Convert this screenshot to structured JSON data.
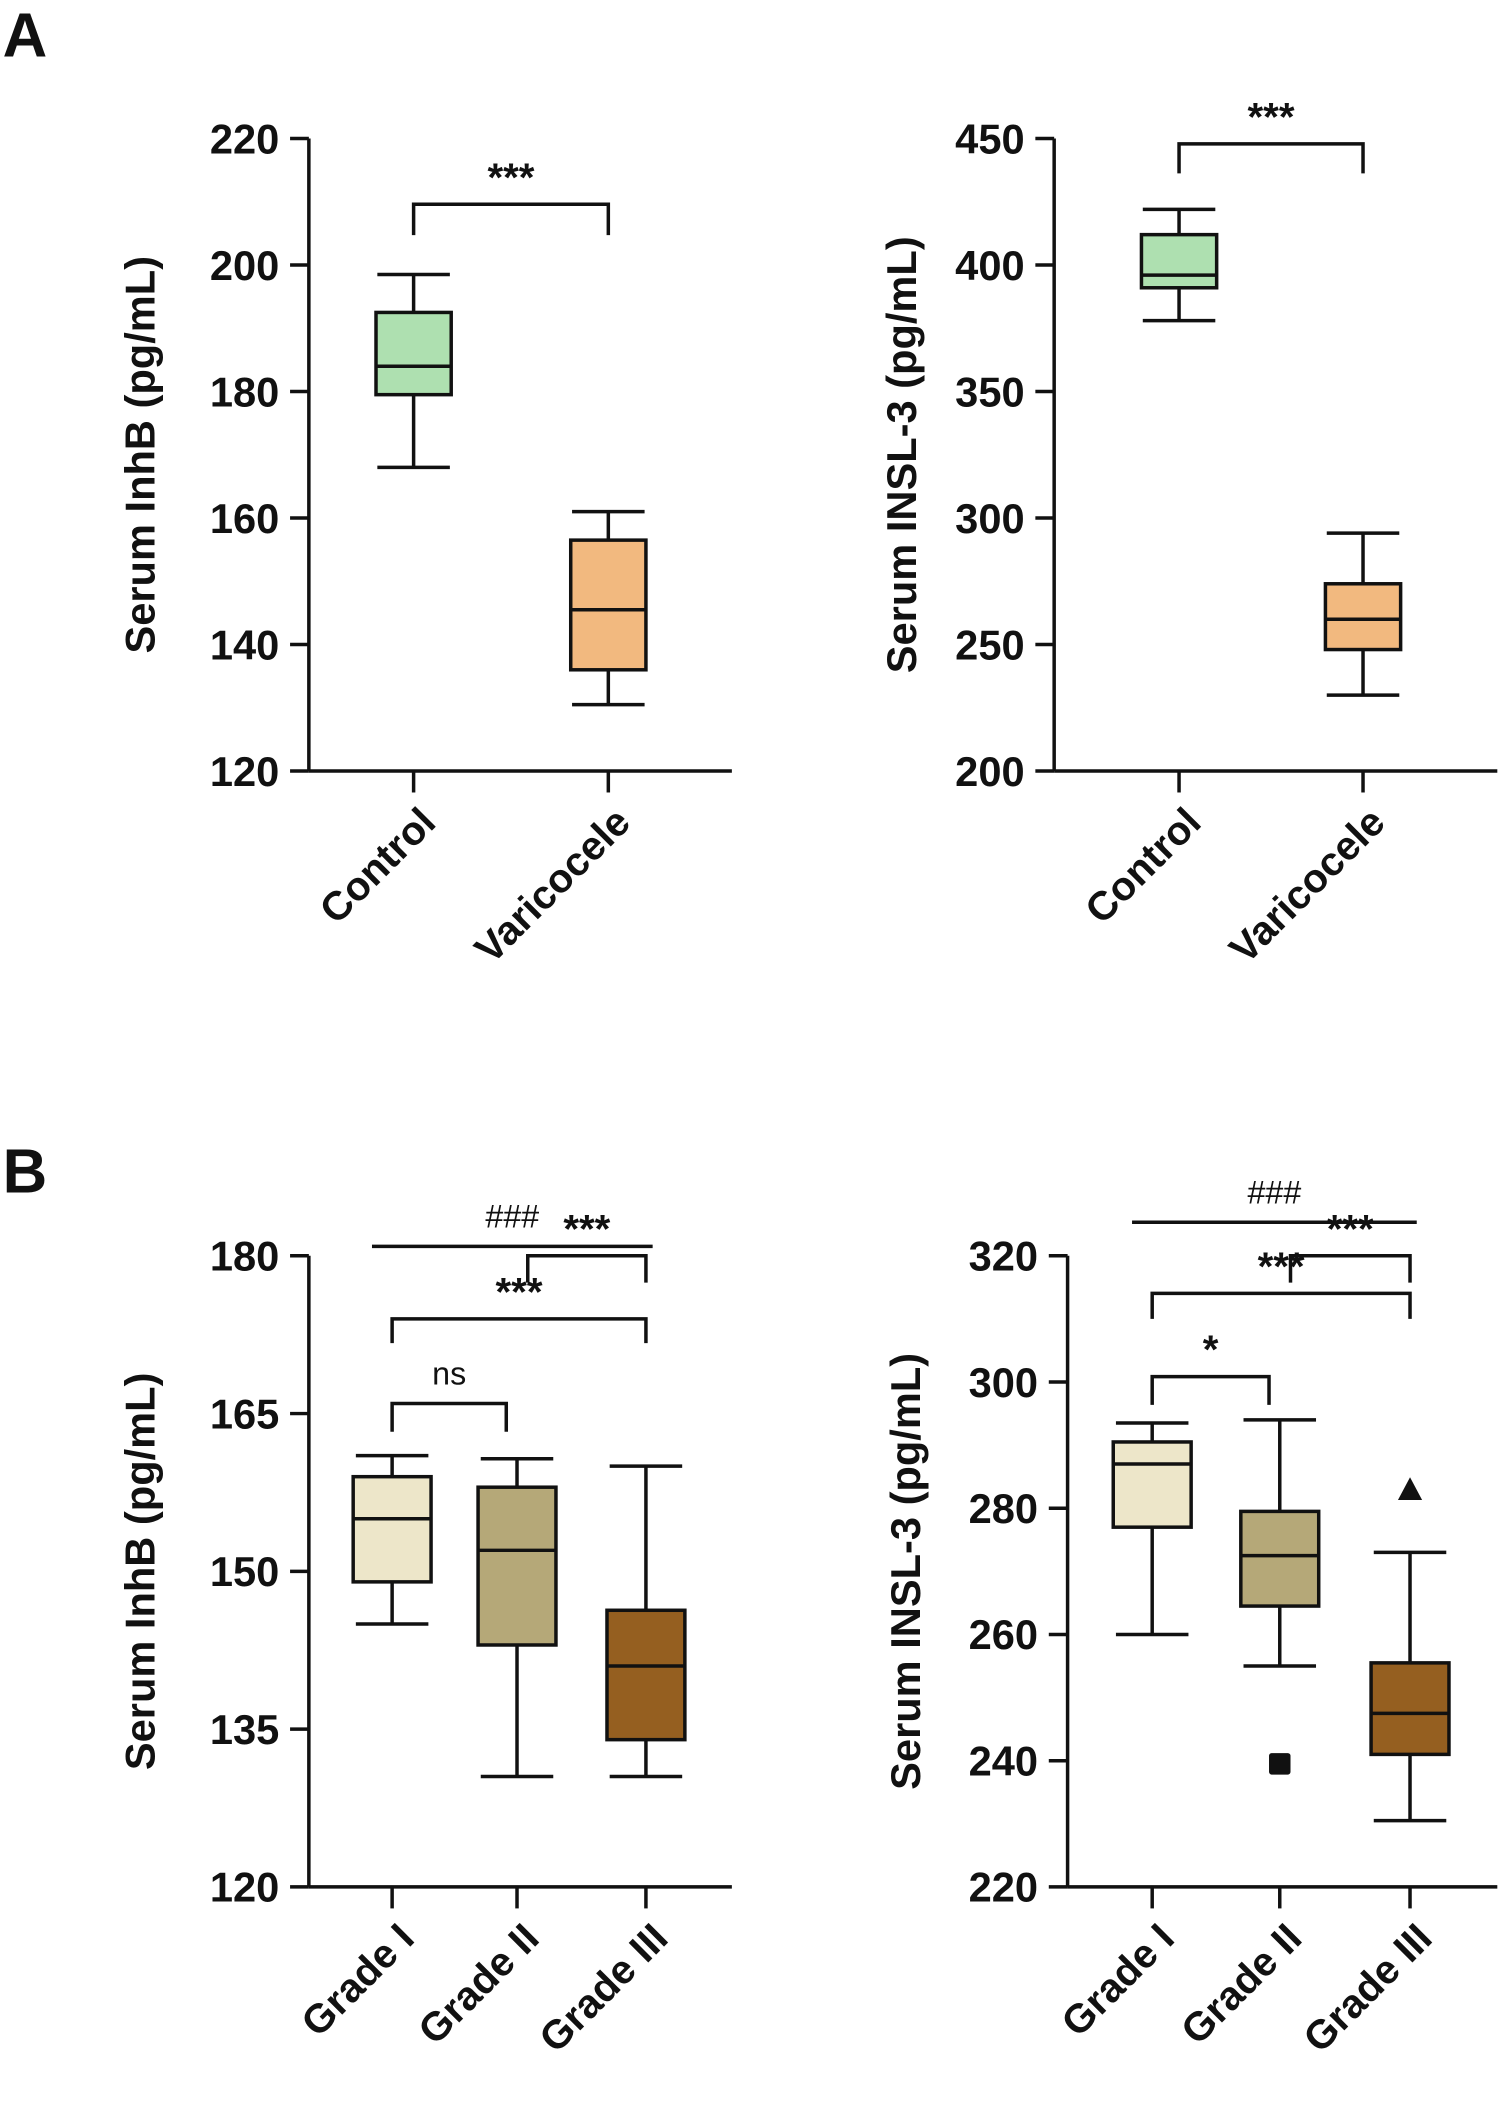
{
  "panels": [
    {
      "label": "A"
    },
    {
      "label": "B"
    }
  ],
  "chart_data": [
    {
      "type": "box",
      "panel": "A",
      "ylabel": "Serum InhB (pg/mL)",
      "ylim": [
        120,
        220
      ],
      "yticks": [
        120,
        140,
        160,
        180,
        200,
        220
      ],
      "categories": [
        "Control",
        "Varicocele"
      ],
      "colors": [
        "#aee0b0",
        "#f2b97f"
      ],
      "boxes": [
        {
          "min": 168,
          "q1": 179.5,
          "median": 184,
          "q3": 192.5,
          "max": 198.5
        },
        {
          "min": 130.5,
          "q1": 136,
          "median": 145.5,
          "q3": 156.5,
          "max": 161
        }
      ],
      "outliers": [],
      "annotations": [
        {
          "text": "***",
          "from": 0,
          "to": 1,
          "style": "bracket"
        }
      ]
    },
    {
      "type": "box",
      "panel": "A",
      "ylabel": "Serum INSL-3 (pg/mL)",
      "ylim": [
        200,
        450
      ],
      "yticks": [
        200,
        250,
        300,
        350,
        400,
        450
      ],
      "categories": [
        "Control",
        "Varicocele"
      ],
      "colors": [
        "#aee0b0",
        "#f2b97f"
      ],
      "boxes": [
        {
          "min": 378,
          "q1": 391,
          "median": 396,
          "q3": 412,
          "max": 422
        },
        {
          "min": 230,
          "q1": 248,
          "median": 260,
          "q3": 274,
          "max": 294
        }
      ],
      "outliers": [],
      "annotations": [
        {
          "text": "***",
          "from": 0,
          "to": 1,
          "style": "bracket"
        }
      ]
    },
    {
      "type": "box",
      "panel": "B",
      "ylabel": "Serum InhB (pg/mL)",
      "ylim": [
        120,
        180
      ],
      "yticks": [
        120,
        135,
        150,
        165,
        180
      ],
      "categories": [
        "Grade I",
        "Grade II",
        "Grade III"
      ],
      "colors": [
        "#ede6c9",
        "#b5a878",
        "#955f20"
      ],
      "boxes": [
        {
          "min": 145,
          "q1": 149,
          "median": 155,
          "q3": 159,
          "max": 161
        },
        {
          "min": 130.5,
          "q1": 143,
          "median": 152,
          "q3": 158,
          "max": 160.7
        },
        {
          "min": 130.5,
          "q1": 134,
          "median": 141,
          "q3": 146.3,
          "max": 160
        }
      ],
      "outliers": [],
      "annotations": [
        {
          "text": "###",
          "from": 0,
          "to": 2,
          "style": "line"
        },
        {
          "text": "***",
          "from": 0,
          "to": 2,
          "style": "bracket"
        },
        {
          "text": "ns",
          "from": 0,
          "to": 1,
          "style": "bracket"
        },
        {
          "text": "***",
          "from": 1,
          "to": 2,
          "style": "bracket"
        }
      ]
    },
    {
      "type": "box",
      "panel": "B",
      "ylabel": "Serum INSL-3 (pg/mL)",
      "ylim": [
        220,
        320
      ],
      "yticks": [
        220,
        240,
        260,
        280,
        300,
        320
      ],
      "categories": [
        "Grade I",
        "Grade II",
        "Grade III"
      ],
      "colors": [
        "#ede6c9",
        "#b5a878",
        "#955f20"
      ],
      "boxes": [
        {
          "min": 260,
          "q1": 277,
          "median": 287,
          "q3": 290.5,
          "max": 293.5
        },
        {
          "min": 255,
          "q1": 264.5,
          "median": 272.5,
          "q3": 279.5,
          "max": 294
        },
        {
          "min": 230.5,
          "q1": 241,
          "median": 247.5,
          "q3": 255.5,
          "max": 273
        }
      ],
      "outliers": [
        {
          "category": 1,
          "value": 239.5,
          "marker": "square"
        },
        {
          "category": 2,
          "value": 283,
          "marker": "triangle"
        }
      ],
      "annotations": [
        {
          "text": "###",
          "from": 0,
          "to": 2,
          "style": "line"
        },
        {
          "text": "***",
          "from": 0,
          "to": 2,
          "style": "bracket"
        },
        {
          "text": "*",
          "from": 0,
          "to": 1,
          "style": "bracket"
        },
        {
          "text": "***",
          "from": 1,
          "to": 2,
          "style": "bracket"
        }
      ]
    }
  ]
}
